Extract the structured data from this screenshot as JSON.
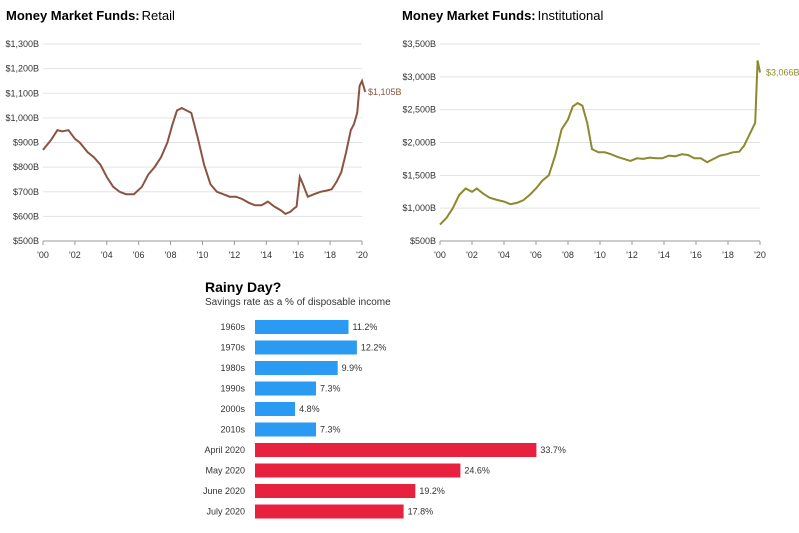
{
  "chart_data": [
    {
      "type": "line",
      "title": "Money Market Funds:",
      "subtitle": "Retail",
      "color": "#8b5440",
      "end_label": "$1,105B",
      "y_ticks": [
        500,
        600,
        700,
        800,
        900,
        1000,
        1100,
        1200,
        1300
      ],
      "y_tick_labels": [
        "$500B",
        "$600B",
        "$700B",
        "$800B",
        "$900B",
        "$1,000B",
        "$1,100B",
        "$1,200B",
        "$1,300B"
      ],
      "ylim": [
        500,
        1300
      ],
      "xlim": [
        2000,
        2020
      ],
      "x_ticks": [
        2000,
        2002,
        2004,
        2006,
        2008,
        2010,
        2012,
        2014,
        2016,
        2018,
        2020
      ],
      "x_tick_labels": [
        "'00",
        "'02",
        "'04",
        "'06",
        "'08",
        "'10",
        "'12",
        "'14",
        "'16",
        "'18",
        "'20"
      ],
      "x": [
        2000.0,
        2000.5,
        2000.9,
        2001.2,
        2001.6,
        2002.0,
        2002.3,
        2002.8,
        2003.2,
        2003.6,
        2004.0,
        2004.4,
        2004.8,
        2005.2,
        2005.7,
        2006.2,
        2006.6,
        2007.0,
        2007.4,
        2007.8,
        2008.1,
        2008.4,
        2008.7,
        2009.0,
        2009.3,
        2009.7,
        2010.1,
        2010.5,
        2010.9,
        2011.3,
        2011.7,
        2012.1,
        2012.5,
        2012.9,
        2013.3,
        2013.7,
        2014.1,
        2014.5,
        2014.9,
        2015.2,
        2015.5,
        2015.7,
        2015.9,
        2016.1,
        2016.3,
        2016.6,
        2017.0,
        2017.4,
        2017.8,
        2018.1,
        2018.4,
        2018.7,
        2019.0,
        2019.3,
        2019.5,
        2019.7,
        2019.85,
        2020.0,
        2020.2
      ],
      "y": [
        870,
        910,
        950,
        945,
        950,
        915,
        900,
        860,
        840,
        810,
        760,
        720,
        700,
        690,
        690,
        720,
        770,
        800,
        840,
        900,
        970,
        1030,
        1040,
        1030,
        1020,
        920,
        810,
        730,
        700,
        690,
        680,
        680,
        670,
        655,
        645,
        645,
        660,
        640,
        625,
        610,
        618,
        630,
        640,
        760,
        730,
        680,
        690,
        700,
        705,
        710,
        740,
        780,
        860,
        950,
        975,
        1020,
        1130,
        1150,
        1105
      ]
    },
    {
      "type": "line",
      "title": "Money Market Funds:",
      "subtitle": "Institutional",
      "color": "#8a8a2e",
      "end_label": "$3,066B",
      "y_ticks": [
        500,
        1000,
        1500,
        2000,
        2500,
        3000,
        3500
      ],
      "y_tick_labels": [
        "$500B",
        "$1,000B",
        "$1,500B",
        "$2,000B",
        "$2,500B",
        "$3,000B",
        "$3,500B"
      ],
      "ylim": [
        500,
        3500
      ],
      "xlim": [
        2000,
        2020
      ],
      "x_ticks": [
        2000,
        2002,
        2004,
        2006,
        2008,
        2010,
        2012,
        2014,
        2016,
        2018,
        2020
      ],
      "x_tick_labels": [
        "'00",
        "'02",
        "'04",
        "'06",
        "'08",
        "'10",
        "'12",
        "'14",
        "'16",
        "'18",
        "'20"
      ],
      "x": [
        2000.0,
        2000.4,
        2000.8,
        2001.2,
        2001.6,
        2002.0,
        2002.3,
        2002.7,
        2003.1,
        2003.5,
        2004.0,
        2004.4,
        2004.8,
        2005.2,
        2005.6,
        2006.0,
        2006.4,
        2006.8,
        2007.2,
        2007.6,
        2008.0,
        2008.3,
        2008.6,
        2008.9,
        2009.2,
        2009.5,
        2009.9,
        2010.3,
        2010.7,
        2011.1,
        2011.5,
        2011.9,
        2012.3,
        2012.7,
        2013.1,
        2013.5,
        2013.9,
        2014.3,
        2014.7,
        2015.1,
        2015.5,
        2015.9,
        2016.3,
        2016.7,
        2017.1,
        2017.5,
        2017.9,
        2018.3,
        2018.7,
        2019.0,
        2019.3,
        2019.5,
        2019.7,
        2019.85,
        2020.0
      ],
      "y": [
        750,
        850,
        1000,
        1200,
        1300,
        1250,
        1300,
        1220,
        1160,
        1130,
        1100,
        1060,
        1080,
        1120,
        1200,
        1300,
        1420,
        1500,
        1800,
        2200,
        2350,
        2550,
        2600,
        2560,
        2300,
        1900,
        1850,
        1850,
        1820,
        1780,
        1750,
        1720,
        1760,
        1750,
        1770,
        1760,
        1760,
        1800,
        1790,
        1820,
        1810,
        1760,
        1760,
        1700,
        1750,
        1800,
        1820,
        1850,
        1860,
        1950,
        2100,
        2200,
        2300,
        3250,
        3066
      ]
    },
    {
      "type": "bar",
      "orientation": "horizontal",
      "title": "Rainy Day?",
      "subtitle": "Savings rate as a % of disposable income",
      "categories": [
        "1960s",
        "1970s",
        "1980s",
        "1990s",
        "2000s",
        "2010s",
        "April 2020",
        "May 2020",
        "June 2020",
        "July 2020"
      ],
      "values": [
        11.2,
        12.2,
        9.9,
        7.3,
        4.8,
        7.3,
        33.7,
        24.6,
        19.2,
        17.8
      ],
      "value_labels": [
        "11.2%",
        "12.2%",
        "9.9%",
        "7.3%",
        "4.8%",
        "7.3%",
        "33.7%",
        "24.6%",
        "19.2%",
        "17.8%"
      ],
      "colors": [
        "#2b9af3",
        "#2b9af3",
        "#2b9af3",
        "#2b9af3",
        "#2b9af3",
        "#2b9af3",
        "#e8213f",
        "#e8213f",
        "#e8213f",
        "#e8213f"
      ]
    }
  ]
}
